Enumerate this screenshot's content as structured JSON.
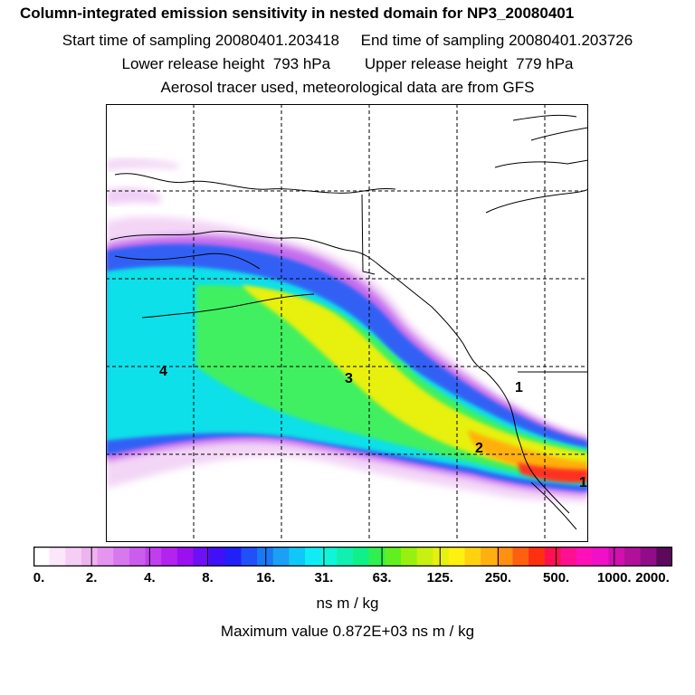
{
  "header": {
    "title": "Column-integrated emission sensitivity in nested domain for NP3_20080401",
    "sampling_line": "Start time of sampling 20080401.203418     End time of sampling 20080401.203726",
    "release_line": "Lower release height  793 hPa        Upper release height  779 hPa",
    "tracer_line": "Aerosol tracer used, meteorological data are from GFS"
  },
  "map": {
    "markers": [
      {
        "label": "1"
      },
      {
        "label": "2"
      },
      {
        "label": "3"
      },
      {
        "label": "4"
      },
      {
        "label": "1"
      }
    ]
  },
  "colorbar": {
    "tick_labels": [
      "0.",
      "2.",
      "4.",
      "8.",
      "16.",
      "31.",
      "63.",
      "125.",
      "250.",
      "500.",
      "1000.",
      "2000."
    ],
    "colors": [
      "#ffffff",
      "#fbe6fb",
      "#f5cdf5",
      "#efb3ef",
      "#e595ef",
      "#d878ee",
      "#cc5cee",
      "#bf3fee",
      "#b322ee",
      "#9a10f0",
      "#6d10f5",
      "#4010f8",
      "#2020f8",
      "#2050f8",
      "#1a78f5",
      "#1aa0f5",
      "#10c8f8",
      "#10ecf5",
      "#10f5d8",
      "#10f0b0",
      "#10f088",
      "#30f050",
      "#60f020",
      "#98f010",
      "#c8f010",
      "#e8f010",
      "#fff010",
      "#ffd210",
      "#ffb010",
      "#ff9010",
      "#ff6010",
      "#ff3010",
      "#ff1050",
      "#ff1090",
      "#ff10b8",
      "#f010c8",
      "#d010b0",
      "#b0109a",
      "#900c88",
      "#5c085c"
    ],
    "units": "ns m / kg",
    "max_value_text": "Maximum value  0.872E+03 ns m / kg"
  }
}
